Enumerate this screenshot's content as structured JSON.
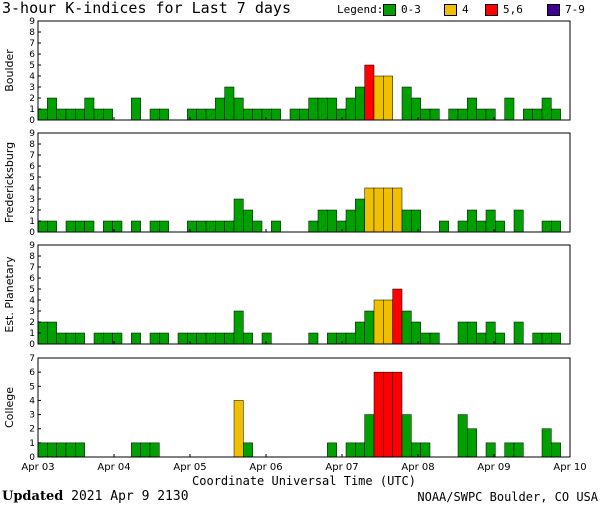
{
  "title": "3-hour K-indices for Last 7 days",
  "legend": {
    "label": "Legend:",
    "items": [
      {
        "label": "0-3",
        "color": "#00a000"
      },
      {
        "label": "4",
        "color": "#f0c000"
      },
      {
        "label": "5,6",
        "color": "#ff0000"
      },
      {
        "label": "7-9",
        "color": "#400090"
      }
    ]
  },
  "footer": {
    "updated_label": "Updated",
    "updated_value": "2021 Apr  9 2130",
    "source": "NOAA/SWPC Boulder, CO USA"
  },
  "chart_data": [
    {
      "type": "bar",
      "ylabel": "Boulder",
      "ylim": [
        0,
        9
      ],
      "yticks": [
        "0",
        "1",
        "2",
        "3",
        "4",
        "5",
        "6",
        "7",
        "8",
        "9"
      ],
      "values": [
        1,
        2,
        1,
        1,
        1,
        2,
        1,
        1,
        0,
        0,
        2,
        0,
        1,
        1,
        0,
        0,
        1,
        1,
        1,
        2,
        3,
        2,
        1,
        1,
        1,
        1,
        0,
        1,
        1,
        2,
        2,
        2,
        1,
        2,
        3,
        5,
        4,
        4,
        0,
        3,
        2,
        1,
        1,
        0,
        1,
        1,
        2,
        1,
        1,
        0,
        2,
        0,
        1,
        1,
        2,
        1,
        0
      ]
    },
    {
      "type": "bar",
      "ylabel": "Fredericksburg",
      "ylim": [
        0,
        9
      ],
      "yticks": [
        "0",
        "1",
        "2",
        "3",
        "4",
        "5",
        "6",
        "7",
        "8",
        "9"
      ],
      "values": [
        1,
        1,
        0,
        1,
        1,
        1,
        0,
        1,
        1,
        0,
        1,
        0,
        1,
        1,
        0,
        0,
        1,
        1,
        1,
        1,
        1,
        3,
        2,
        1,
        0,
        1,
        0,
        0,
        0,
        1,
        2,
        2,
        1,
        2,
        3,
        4,
        4,
        4,
        4,
        2,
        2,
        0,
        0,
        1,
        0,
        1,
        2,
        1,
        2,
        1,
        0,
        2,
        0,
        0,
        1,
        1,
        0
      ]
    },
    {
      "type": "bar",
      "ylabel": "Est. Planetary",
      "ylim": [
        0,
        9
      ],
      "yticks": [
        "0",
        "1",
        "2",
        "3",
        "4",
        "5",
        "6",
        "7",
        "8",
        "9"
      ],
      "values": [
        2,
        2,
        1,
        1,
        1,
        0,
        1,
        1,
        1,
        0,
        1,
        0,
        1,
        1,
        0,
        1,
        1,
        1,
        1,
        1,
        1,
        3,
        1,
        0,
        1,
        0,
        0,
        0,
        0,
        1,
        0,
        1,
        1,
        1,
        2,
        3,
        4,
        4,
        5,
        3,
        2,
        1,
        1,
        0,
        0,
        2,
        2,
        1,
        2,
        1,
        0,
        2,
        0,
        1,
        1,
        1,
        0
      ]
    },
    {
      "type": "bar",
      "ylabel": "College",
      "ylim": [
        0,
        7
      ],
      "yticks": [
        "0",
        "1",
        "2",
        "3",
        "4",
        "5",
        "6",
        "7"
      ],
      "values": [
        1,
        1,
        1,
        1,
        1,
        0,
        0,
        0,
        0,
        0,
        1,
        1,
        1,
        0,
        0,
        0,
        0,
        0,
        0,
        0,
        0,
        4,
        1,
        0,
        0,
        0,
        0,
        0,
        0,
        0,
        0,
        1,
        0,
        1,
        1,
        3,
        6,
        6,
        6,
        3,
        1,
        1,
        0,
        0,
        0,
        3,
        2,
        0,
        1,
        0,
        1,
        1,
        0,
        0,
        2,
        1,
        0
      ],
      "xlabel": "Coordinate Universal Time (UTC)",
      "xticks": [
        "Apr 03",
        "Apr 04",
        "Apr 05",
        "Apr 06",
        "Apr 07",
        "Apr 08",
        "Apr 09",
        "Apr 10"
      ]
    }
  ]
}
